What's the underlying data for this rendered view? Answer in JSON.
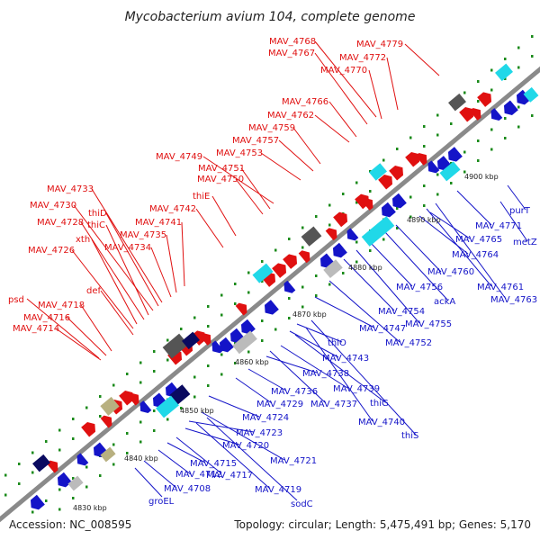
{
  "title": "Mycobacterium avium 104, complete genome",
  "footer": {
    "accession": "Accession: NC_008595",
    "summary": "Topology: circular; Length: 5,475,491 bp; Genes: 5,170"
  },
  "ticks": [
    "4830 kbp",
    "4840 kbp",
    "4850 kbp",
    "4860 kbp",
    "4870 kbp",
    "4880 kbp",
    "4890 kbp",
    "4900 kbp"
  ],
  "forward_labels": [
    "MAV_4714",
    "MAV_4716",
    "MAV_4718",
    "psd",
    "def",
    "MAV_4726",
    "xth",
    "MAV_4728",
    "thiC",
    "MAV_4730",
    "thiD",
    "MAV_4733",
    "MAV_4734",
    "MAV_4735",
    "MAV_4741",
    "MAV_4742",
    "thiE",
    "MAV_4750",
    "MAV_4751",
    "MAV_4749",
    "MAV_4753",
    "MAV_4757",
    "MAV_4759",
    "MAV_4762",
    "MAV_4766",
    "MAV_4770",
    "MAV_4767",
    "MAV_4768",
    "MAV_4772",
    "MAV_4779"
  ],
  "reverse_labels": [
    "groEL",
    "MAV_4708",
    "MAV_4712",
    "MAV_4715",
    "MAV_4717",
    "MAV_4719",
    "sodC",
    "MAV_4720",
    "MAV_4721",
    "MAV_4723",
    "MAV_4724",
    "MAV_4729",
    "MAV_4736",
    "MAV_4737",
    "MAV_4738",
    "MAV_4739",
    "thiG",
    "MAV_4740",
    "thiS",
    "MAV_4743",
    "thiO",
    "MAV_4747",
    "MAV_4752",
    "MAV_4754",
    "MAV_4755",
    "MAV_4756",
    "ackA",
    "MAV_4760",
    "MAV_4761",
    "MAV_4763",
    "MAV_4764",
    "MAV_4765",
    "MAV_4771",
    "metZ",
    "purT"
  ],
  "colors": {
    "forward": "#e01010",
    "reverse": "#1414c8",
    "backbone": "#8a8a8a",
    "dots": "#1a8a1a",
    "cyan": "#20d8e8",
    "gray": "#bbbbbb",
    "olive": "#b8b080",
    "navy": "#0a0a60",
    "dark": "#555555"
  }
}
